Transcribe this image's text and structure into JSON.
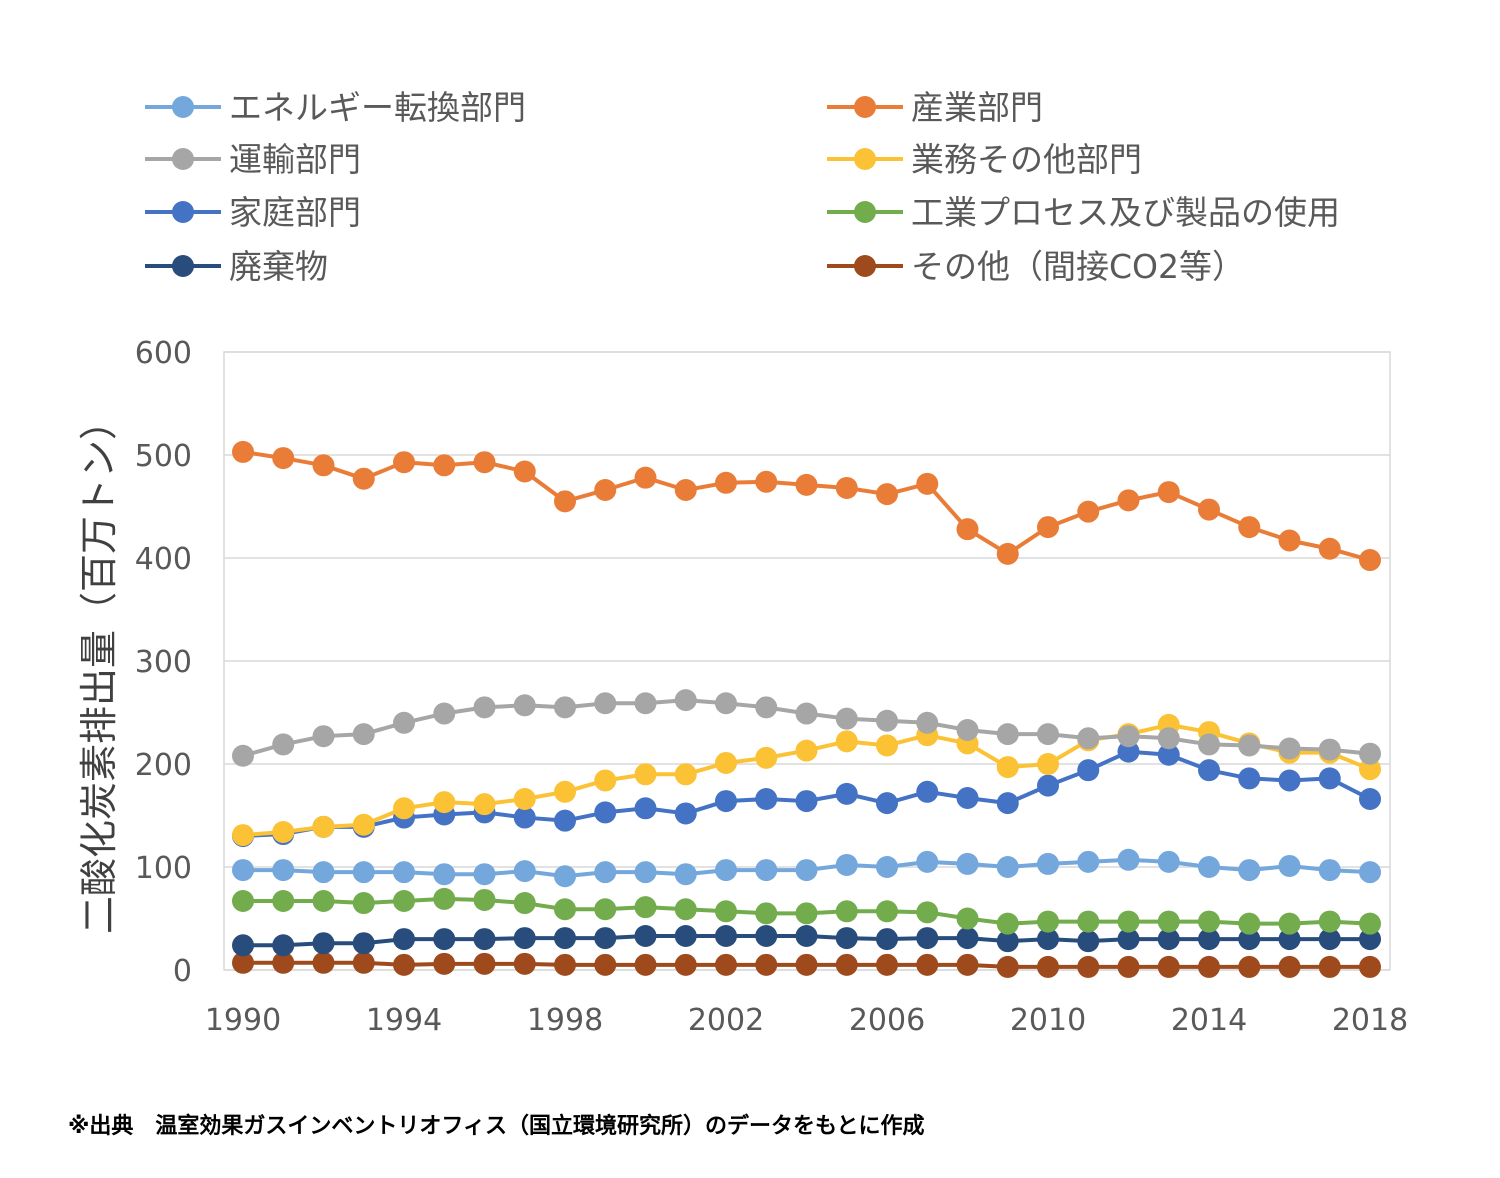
{
  "chart_data": {
    "type": "line",
    "ylabel": "二酸化炭素排出量（百万トン）",
    "xlabel": "",
    "ylim": [
      0,
      600
    ],
    "yticks": [
      0,
      100,
      200,
      300,
      400,
      500,
      600
    ],
    "xticks": [
      1990,
      1994,
      1998,
      2002,
      2006,
      2010,
      2014,
      2018
    ],
    "x": [
      1990,
      1991,
      1992,
      1993,
      1994,
      1995,
      1996,
      1997,
      1998,
      1999,
      2000,
      2001,
      2002,
      2003,
      2004,
      2005,
      2006,
      2007,
      2008,
      2009,
      2010,
      2011,
      2012,
      2013,
      2014,
      2015,
      2016,
      2017,
      2018
    ],
    "grid": "horizontal",
    "legend_position": "top",
    "series": [
      {
        "name": "エネルギー転換部門",
        "color": "#74a7dc",
        "values": [
          97,
          97,
          95,
          95,
          95,
          93,
          93,
          96,
          91,
          95,
          95,
          93,
          97,
          97,
          97,
          102,
          100,
          105,
          103,
          100,
          103,
          105,
          107,
          105,
          100,
          97,
          101,
          97,
          95
        ]
      },
      {
        "name": "産業部門",
        "color": "#e97d38",
        "values": [
          503,
          497,
          490,
          477,
          493,
          490,
          493,
          484,
          455,
          466,
          478,
          466,
          473,
          474,
          471,
          468,
          462,
          472,
          428,
          404,
          430,
          445,
          456,
          464,
          447,
          430,
          417,
          409,
          398
        ]
      },
      {
        "name": "運輸部門",
        "color": "#a6a6a6",
        "values": [
          208,
          219,
          227,
          229,
          240,
          249,
          255,
          257,
          255,
          259,
          259,
          262,
          259,
          255,
          249,
          244,
          242,
          240,
          233,
          229,
          229,
          225,
          227,
          225,
          219,
          218,
          215,
          214,
          210
        ]
      },
      {
        "name": "業務その他部門",
        "color": "#fbc235",
        "values": [
          131,
          134,
          139,
          141,
          157,
          163,
          161,
          166,
          173,
          184,
          190,
          190,
          201,
          206,
          213,
          222,
          218,
          228,
          220,
          197,
          200,
          223,
          229,
          238,
          231,
          220,
          211,
          211,
          195
        ]
      },
      {
        "name": "家庭部門",
        "color": "#4472c4",
        "values": [
          130,
          132,
          139,
          139,
          148,
          151,
          153,
          148,
          145,
          153,
          157,
          152,
          164,
          166,
          164,
          171,
          162,
          173,
          167,
          162,
          179,
          194,
          212,
          209,
          194,
          186,
          184,
          186,
          166
        ]
      },
      {
        "name": "工業プロセス及び製品の使用",
        "color": "#72ac4d",
        "values": [
          67,
          67,
          67,
          65,
          67,
          69,
          68,
          65,
          59,
          59,
          61,
          59,
          57,
          55,
          55,
          57,
          57,
          56,
          50,
          45,
          47,
          47,
          47,
          47,
          47,
          45,
          45,
          47,
          45
        ]
      },
      {
        "name": "廃棄物",
        "color": "#284d7c",
        "values": [
          24,
          24,
          26,
          26,
          30,
          30,
          30,
          31,
          31,
          31,
          33,
          33,
          33,
          33,
          33,
          31,
          30,
          31,
          31,
          28,
          30,
          28,
          30,
          30,
          30,
          30,
          30,
          30,
          30
        ]
      },
      {
        "name": "その他（間接CO2等）",
        "color": "#9e4a1c",
        "values": [
          7,
          7,
          7,
          7,
          5,
          6,
          6,
          6,
          5,
          5,
          5,
          5,
          5,
          5,
          5,
          5,
          5,
          5,
          5,
          3,
          3,
          3,
          3,
          3,
          3,
          3,
          3,
          3,
          3
        ]
      }
    ]
  },
  "source_note": "※出典　温室効果ガスインベントリオフィス（国立環境研究所）のデータをもとに作成"
}
